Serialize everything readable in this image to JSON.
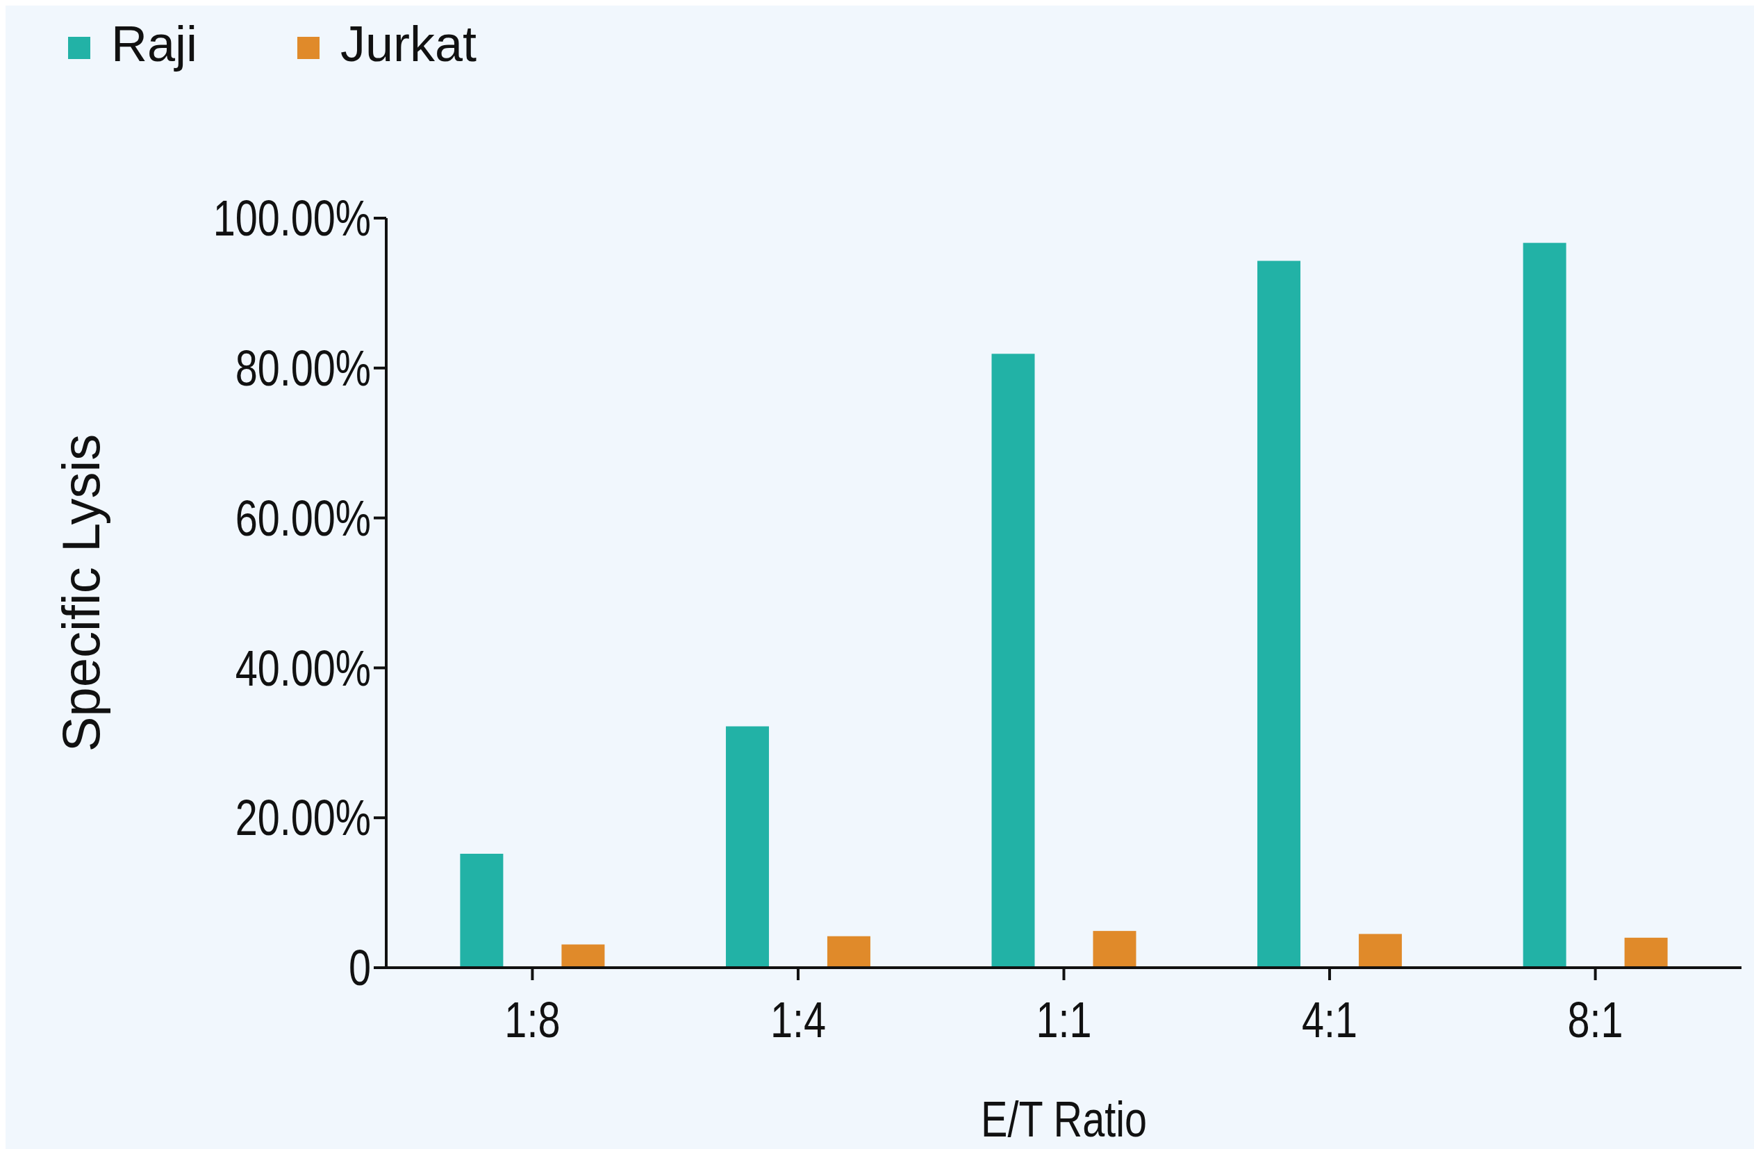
{
  "chart_data": {
    "type": "bar",
    "xlabel": "E/T Ratio",
    "ylabel": "Specific Lysis",
    "categories": [
      "1:8",
      "1:4",
      "1:1",
      "4:1",
      "8:1"
    ],
    "series": [
      {
        "name": "Raji",
        "color": "#22b2a6",
        "values": [
          15.2,
          32.2,
          81.9,
          94.3,
          96.7
        ]
      },
      {
        "name": "Jurkat",
        "color": "#e08a2a",
        "values": [
          3.1,
          4.2,
          4.9,
          4.5,
          4.0
        ]
      }
    ],
    "ylim": [
      0,
      100
    ],
    "yticks": [
      {
        "value": 0,
        "label": "0"
      },
      {
        "value": 20,
        "label": "20.00%"
      },
      {
        "value": 40,
        "label": "40.00%"
      },
      {
        "value": 60,
        "label": "60.00%"
      },
      {
        "value": 80,
        "label": "80.00%"
      },
      {
        "value": 100,
        "label": "100.00%"
      }
    ],
    "grid": false,
    "legend": "top left"
  }
}
